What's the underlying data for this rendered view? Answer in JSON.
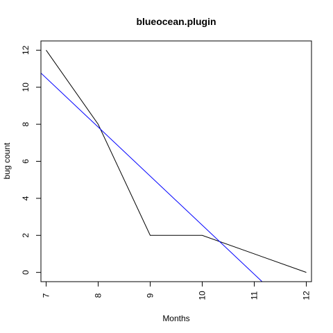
{
  "chart_data": {
    "type": "line",
    "title": "blueocean.plugin",
    "xlabel": "Months",
    "ylabel": "bug count",
    "xlim": [
      6.9,
      12.1
    ],
    "ylim": [
      -0.5,
      12.5
    ],
    "x_ticks": [
      "7",
      "8",
      "9",
      "10",
      "11",
      "12"
    ],
    "y_ticks": [
      "0",
      "2",
      "4",
      "6",
      "8",
      "10",
      "12"
    ],
    "series": [
      {
        "color": "#000000",
        "x": [
          7,
          8,
          9,
          10,
          11,
          12
        ],
        "y": [
          12,
          8,
          2,
          2,
          1,
          0
        ]
      },
      {
        "kind": "trend",
        "color": "#0000ff",
        "intercept": 29.05,
        "slope": -2.65
      }
    ],
    "grid": false,
    "legend": "none"
  }
}
